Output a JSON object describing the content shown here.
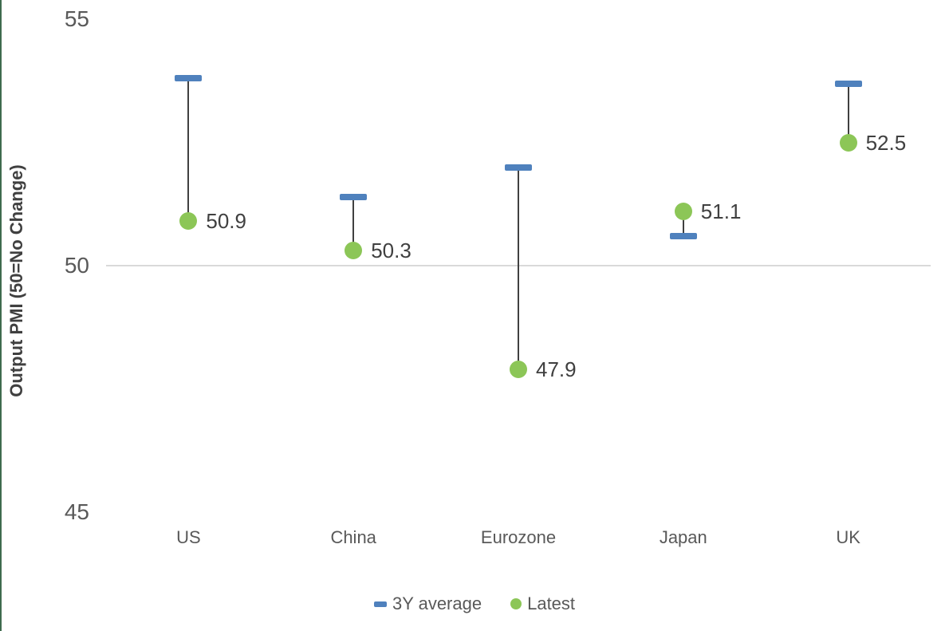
{
  "page": {
    "background": "#ffffff",
    "left_edge_line_color": "#3f6b4e"
  },
  "chart_data": {
    "type": "scatter",
    "subtype": "dumbbell-high-low",
    "title": "",
    "xlabel": "",
    "ylabel": "Output PMI (50=No Change)",
    "categories": [
      "US",
      "China",
      "Eurozone",
      "Japan",
      "UK"
    ],
    "series": [
      {
        "name": "3Y average",
        "marker": "dash",
        "color": "#4F81BD",
        "values": [
          53.8,
          51.4,
          52.0,
          50.6,
          53.7
        ],
        "show_labels": false
      },
      {
        "name": "Latest",
        "marker": "circle",
        "color": "#8CC657",
        "values": [
          50.9,
          50.3,
          47.9,
          51.1,
          52.5
        ],
        "show_labels": true,
        "data_labels": [
          "50.9",
          "50.3",
          "47.9",
          "51.1",
          "52.5"
        ]
      }
    ],
    "yticks": [
      55,
      50,
      45
    ],
    "ytick_labels": [
      "55",
      "50",
      "45"
    ],
    "ylim": [
      45,
      55
    ],
    "grid": "single reference line at 50 only",
    "reference_line": {
      "value": 50,
      "color": "#D9D9D9"
    },
    "connector_color": "#404040",
    "axis_text_color": "#595959",
    "data_label_color": "#404040",
    "legend_position": "bottom"
  }
}
